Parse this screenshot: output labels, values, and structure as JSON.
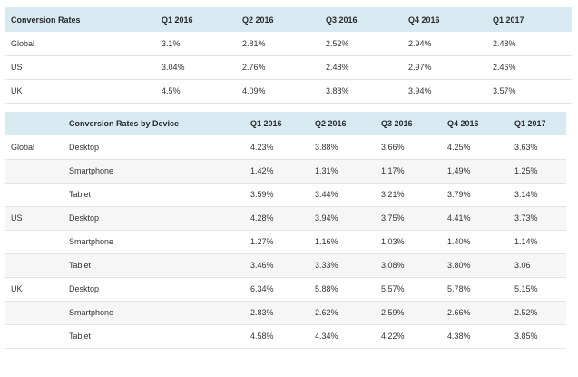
{
  "table1": {
    "headers": [
      "Conversion Rates",
      "Q1 2016",
      "Q2 2016",
      "Q3 2016",
      "Q4 2016",
      "Q1 2017"
    ],
    "rows": [
      [
        "Global",
        "3.1%",
        "2.81%",
        "2.52%",
        "2.94%",
        "2.48%"
      ],
      [
        "US",
        "3.04%",
        "2.76%",
        "2.48%",
        "2.97%",
        "2.46%"
      ],
      [
        "UK",
        "4.5%",
        "4.09%",
        "3.88%",
        "3.94%",
        "3.57%"
      ]
    ]
  },
  "table2": {
    "headers": [
      "",
      "Conversion Rates by Device",
      "Q1 2016",
      "Q2 2016",
      "Q3 2016",
      "Q4 2016",
      "Q1 2017"
    ],
    "rows": [
      [
        "Global",
        "Desktop",
        "4.23%",
        "3.88%",
        "3.66%",
        "4.25%",
        "3.63%"
      ],
      [
        "",
        "Smartphone",
        "1.42%",
        "1.31%",
        "1.17%",
        "1.49%",
        "1.25%"
      ],
      [
        "",
        "Tablet",
        "3.59%",
        "3.44%",
        "3.21%",
        "3.79%",
        "3.14%"
      ],
      [
        "US",
        "Desktop",
        "4.28%",
        "3.94%",
        "3.75%",
        "4.41%",
        "3.73%"
      ],
      [
        "",
        "Smartphone",
        "1.27%",
        "1.16%",
        "1.03%",
        "1.40%",
        "1.14%"
      ],
      [
        "",
        "Tablet",
        "3.46%",
        "3.33%",
        "3.08%",
        "3.80%",
        "3.06"
      ],
      [
        "UK",
        "Desktop",
        "6.34%",
        "5.88%",
        "5.57%",
        "5.78%",
        "5.15%"
      ],
      [
        "",
        "Smartphone",
        "2.83%",
        "2.62%",
        "2.59%",
        "2.66%",
        "2.52%"
      ],
      [
        "",
        "Tablet",
        "4.58%",
        "4.34%",
        "4.22%",
        "4.38%",
        "3.85%"
      ]
    ]
  }
}
